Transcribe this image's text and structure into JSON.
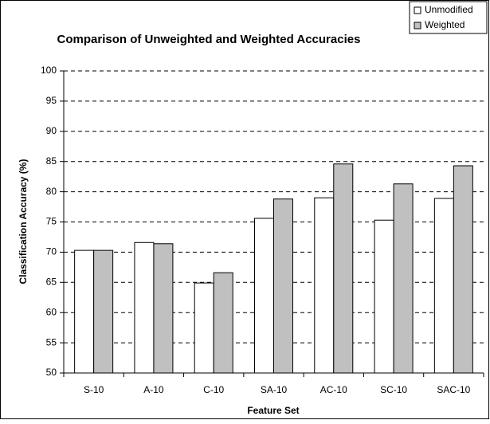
{
  "chart_data": {
    "type": "bar",
    "title": "Comparison of Unweighted and Weighted Accuracies",
    "xlabel": "Feature Set",
    "ylabel": "Classification Accuracy (%)",
    "categories": [
      "S-10",
      "A-10",
      "C-10",
      "SA-10",
      "AC-10",
      "SC-10",
      "SAC-10"
    ],
    "series": [
      {
        "name": "Unmodified",
        "color": "#ffffff",
        "values": [
          70.3,
          71.6,
          64.9,
          75.6,
          79.0,
          75.3,
          78.9
        ]
      },
      {
        "name": "Weighted",
        "color": "#c0c0c0",
        "values": [
          70.3,
          71.4,
          66.6,
          78.8,
          84.6,
          81.3,
          84.3
        ]
      }
    ],
    "ylim": [
      50,
      100
    ],
    "yticks": [
      50,
      55,
      60,
      65,
      70,
      75,
      80,
      85,
      90,
      95,
      100
    ],
    "grid": true,
    "legend": "top-right"
  }
}
